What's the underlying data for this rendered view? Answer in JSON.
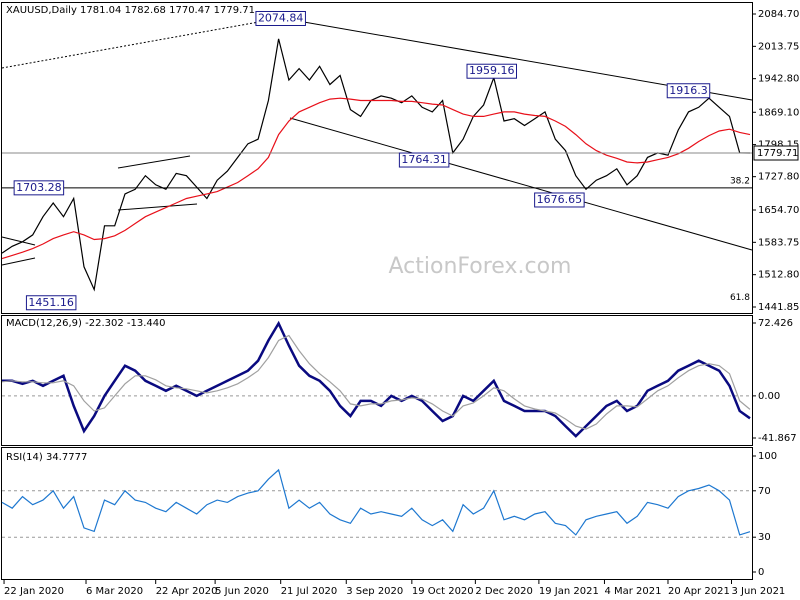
{
  "chart_data": [
    {
      "type": "line",
      "title": "XAUUSD,Daily 1781.04 1782.68 1770.47 1779.71",
      "watermark": "ActionForex.com",
      "x": [
        0,
        5,
        10,
        15,
        20,
        25,
        30,
        35,
        40,
        45,
        50,
        55,
        60,
        65,
        70,
        75,
        80,
        85,
        90,
        95,
        100,
        105,
        110,
        115,
        120,
        125,
        130,
        135,
        140,
        145,
        150,
        155,
        160,
        165,
        170,
        175,
        180,
        185,
        190,
        195,
        200,
        205,
        210,
        215,
        220,
        225,
        230,
        235,
        240,
        245,
        250,
        255,
        260,
        265,
        270,
        275,
        280,
        285,
        290,
        295,
        300,
        305,
        310,
        315,
        320,
        325,
        330,
        335,
        340,
        345,
        350,
        355,
        360,
        365
      ],
      "xlim": [
        0,
        366
      ],
      "ylim": [
        1441.85,
        2084.7
      ],
      "yticks": [
        {
          "value": 2084.7,
          "label": "2084.70"
        },
        2013.75,
        {
          "value": 1942.8,
          "label": "1942.80"
        },
        {
          "value": 1869.1,
          "label": "1869.10"
        },
        1798.15,
        {
          "value": 1727.8,
          "label": "1727.80"
        },
        {
          "value": 1654.7,
          "label": "1654.70"
        },
        1583.75,
        {
          "value": 1512.8,
          "label": "1512.80"
        },
        1441.85
      ],
      "series": [
        {
          "color": "#000000",
          "values": [
            1560,
            1575,
            1585,
            1600,
            1640,
            1670,
            1640,
            1680,
            1530,
            1480,
            1620,
            1620,
            1690,
            1700,
            1730,
            1710,
            1700,
            1735,
            1730,
            1705,
            1680,
            1720,
            1740,
            1770,
            1800,
            1810,
            1895,
            2030,
            1940,
            1965,
            1940,
            1970,
            1930,
            1950,
            1875,
            1860,
            1895,
            1905,
            1900,
            1890,
            1905,
            1880,
            1870,
            1895,
            1780,
            1810,
            1860,
            1885,
            1945,
            1850,
            1855,
            1840,
            1855,
            1870,
            1810,
            1785,
            1730,
            1700,
            1720,
            1730,
            1745,
            1710,
            1730,
            1770,
            1780,
            1775,
            1830,
            1870,
            1880,
            1900,
            1880,
            1860,
            1780,
            1779.71
          ]
        },
        {
          "color": "#e8101a",
          "values": [
            1548,
            1555,
            1562,
            1570,
            1580,
            1592,
            1600,
            1607,
            1600,
            1590,
            1592,
            1598,
            1610,
            1625,
            1640,
            1650,
            1660,
            1670,
            1680,
            1685,
            1690,
            1695,
            1705,
            1715,
            1730,
            1745,
            1770,
            1820,
            1850,
            1870,
            1880,
            1890,
            1898,
            1900,
            1898,
            1895,
            1895,
            1895,
            1895,
            1893,
            1893,
            1890,
            1887,
            1885,
            1875,
            1865,
            1860,
            1860,
            1865,
            1870,
            1870,
            1865,
            1862,
            1860,
            1850,
            1838,
            1820,
            1800,
            1785,
            1775,
            1768,
            1760,
            1758,
            1760,
            1765,
            1770,
            1778,
            1790,
            1805,
            1818,
            1828,
            1832,
            1825,
            1820
          ]
        }
      ],
      "last_price": 1779.71,
      "annotations": [
        {
          "x": 136,
          "value": 2074.84
        },
        {
          "x": 239,
          "value": 1959.16
        },
        {
          "x": 335,
          "value": 1916.3
        },
        {
          "x": 206,
          "value": 1764.31
        },
        {
          "x": 18,
          "value": 1703.28
        },
        {
          "x": 272,
          "value": 1676.65
        },
        {
          "x": 24,
          "value": 1451.16
        }
      ],
      "fib": [
        {
          "label": "38.2",
          "value": 1703.28
        },
        {
          "label": "61.8",
          "value": 1447
        }
      ]
    },
    {
      "type": "line",
      "title": "MACD(12,26,9) -22.302 -13.440",
      "x": [
        0,
        5,
        10,
        15,
        20,
        25,
        30,
        35,
        40,
        45,
        50,
        55,
        60,
        65,
        70,
        75,
        80,
        85,
        90,
        95,
        100,
        105,
        110,
        115,
        120,
        125,
        130,
        135,
        140,
        145,
        150,
        155,
        160,
        165,
        170,
        175,
        180,
        185,
        190,
        195,
        200,
        205,
        210,
        215,
        220,
        225,
        230,
        235,
        240,
        245,
        250,
        255,
        260,
        265,
        270,
        275,
        280,
        285,
        290,
        295,
        300,
        305,
        310,
        315,
        320,
        325,
        330,
        335,
        340,
        345,
        350,
        355,
        360,
        365
      ],
      "xlim": [
        0,
        366
      ],
      "ylim": [
        -41.867,
        72.426
      ],
      "yticks": [
        72.426,
        {
          "value": 0,
          "label": "0.00"
        },
        -41.867
      ],
      "series": [
        {
          "color": "#0a0a80",
          "values": [
            15,
            15,
            12,
            15,
            10,
            15,
            20,
            -10,
            -35,
            -20,
            0,
            15,
            30,
            25,
            15,
            10,
            5,
            10,
            5,
            0,
            5,
            10,
            15,
            20,
            25,
            35,
            55,
            72,
            50,
            30,
            20,
            15,
            5,
            -10,
            -20,
            -5,
            -5,
            -10,
            0,
            -5,
            0,
            -5,
            -15,
            -25,
            -20,
            0,
            -5,
            5,
            15,
            -5,
            -10,
            -15,
            -15,
            -15,
            -20,
            -30,
            -40,
            -30,
            -20,
            -10,
            -5,
            -15,
            -10,
            5,
            10,
            15,
            25,
            30,
            35,
            30,
            25,
            10,
            -15,
            -22.302
          ]
        },
        {
          "color": "#a0a0a0",
          "values": [
            14,
            15,
            14,
            14,
            13,
            13,
            15,
            10,
            -5,
            -15,
            -12,
            0,
            12,
            20,
            20,
            16,
            10,
            8,
            7,
            5,
            3,
            5,
            8,
            12,
            18,
            25,
            38,
            55,
            60,
            45,
            32,
            22,
            14,
            5,
            -8,
            -10,
            -8,
            -8,
            -5,
            -4,
            -2,
            -3,
            -8,
            -15,
            -20,
            -10,
            -7,
            0,
            8,
            5,
            -3,
            -10,
            -13,
            -15,
            -17,
            -23,
            -30,
            -33,
            -28,
            -18,
            -10,
            -10,
            -11,
            -3,
            5,
            10,
            18,
            25,
            30,
            32,
            30,
            22,
            -5,
            -13.44
          ]
        }
      ]
    },
    {
      "type": "line",
      "title": "RSI(14) 34.7777",
      "x": [
        0,
        5,
        10,
        15,
        20,
        25,
        30,
        35,
        40,
        45,
        50,
        55,
        60,
        65,
        70,
        75,
        80,
        85,
        90,
        95,
        100,
        105,
        110,
        115,
        120,
        125,
        130,
        135,
        140,
        145,
        150,
        155,
        160,
        165,
        170,
        175,
        180,
        185,
        190,
        195,
        200,
        205,
        210,
        215,
        220,
        225,
        230,
        235,
        240,
        245,
        250,
        255,
        260,
        265,
        270,
        275,
        280,
        285,
        290,
        295,
        300,
        305,
        310,
        315,
        320,
        325,
        330,
        335,
        340,
        345,
        350,
        355,
        360,
        365
      ],
      "xlim": [
        0,
        366
      ],
      "ylim": [
        0,
        100
      ],
      "yticks": [
        100,
        70,
        30,
        0
      ],
      "xticks": [
        {
          "value": 1,
          "label": "22 Jan 2020"
        },
        {
          "value": 41,
          "label": "6 Mar 2020"
        },
        {
          "value": 75,
          "label": "22 Apr 2020"
        },
        {
          "value": 104,
          "label": "5 Jun 2020"
        },
        {
          "value": 136,
          "label": "21 Jul 2020"
        },
        {
          "value": 168,
          "label": "3 Sep 2020"
        },
        {
          "value": 200,
          "label": "19 Oct 2020"
        },
        {
          "value": 231,
          "label": "2 Dec 2020"
        },
        {
          "value": 262,
          "label": "19 Jan 2021"
        },
        {
          "value": 294,
          "label": "4 Mar 2021"
        },
        {
          "value": 325,
          "label": "20 Apr 2021"
        },
        {
          "value": 356,
          "label": "3 Jun 2021"
        }
      ],
      "series": [
        {
          "color": "#1e78d0",
          "values": [
            60,
            55,
            65,
            58,
            62,
            70,
            55,
            65,
            38,
            35,
            62,
            58,
            70,
            62,
            60,
            55,
            52,
            60,
            55,
            50,
            58,
            62,
            60,
            65,
            68,
            70,
            80,
            88,
            55,
            62,
            55,
            60,
            50,
            45,
            42,
            55,
            50,
            52,
            50,
            48,
            55,
            45,
            40,
            45,
            35,
            58,
            50,
            55,
            70,
            45,
            48,
            45,
            50,
            52,
            42,
            40,
            32,
            45,
            48,
            50,
            52,
            42,
            48,
            60,
            58,
            55,
            65,
            70,
            72,
            75,
            70,
            62,
            32,
            34.7777
          ]
        }
      ]
    }
  ]
}
